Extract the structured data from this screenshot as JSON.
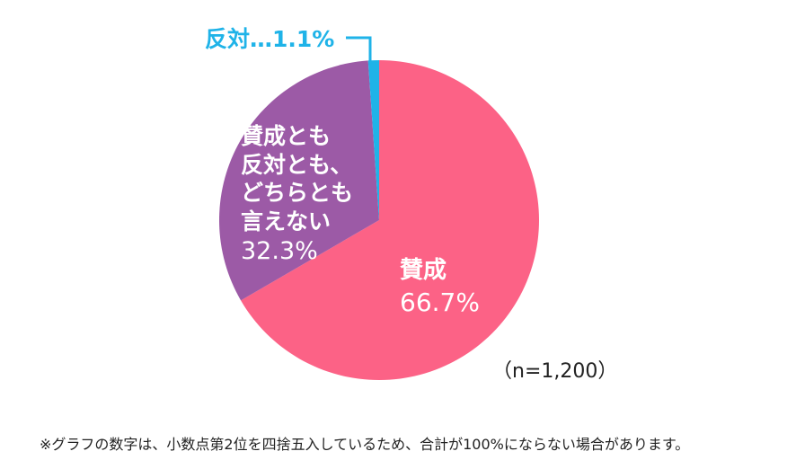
{
  "chart_data": {
    "type": "pie",
    "title": "",
    "slices": [
      {
        "label": "賛成",
        "value": 66.7,
        "value_text": "66.7%",
        "color": "#fc6286"
      },
      {
        "label": "賛成とも\n反対とも、\nどちらとも\n言えない",
        "value": 32.3,
        "value_text": "32.3%",
        "color": "#9c5aa6"
      },
      {
        "label": "反対",
        "value": 1.1,
        "value_text": "1.1%",
        "color": "#1fb3e8"
      }
    ],
    "start_angle_deg": 0,
    "direction": "clockwise",
    "legend": "none",
    "oppose_label_text": "反対…1.1%"
  },
  "annotations": {
    "sample_size": "（n=1,200）",
    "footnote": "※グラフの数字は、小数点第2位を四捨五入しているため、合計が100%にならない場合があります。"
  },
  "colors": {
    "leader_line": "#1fb3e8",
    "text_dark": "#222222"
  }
}
